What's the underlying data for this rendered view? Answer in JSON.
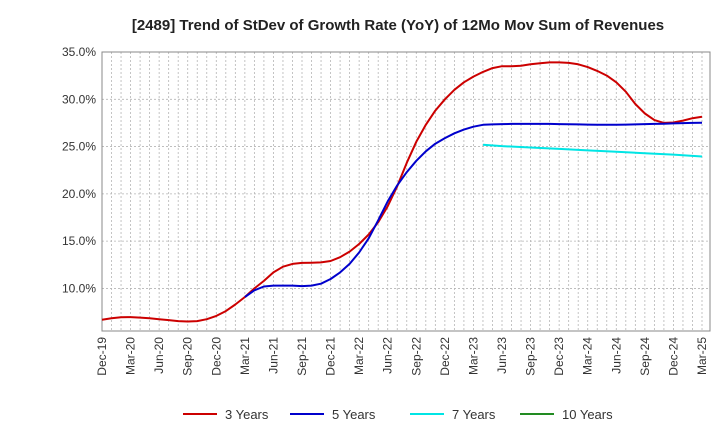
{
  "chart_data": {
    "type": "line",
    "title": "[2489]  Trend of StDev of Growth Rate (YoY) of 12Mo Mov Sum of Revenues",
    "xlabel": "",
    "ylabel": "",
    "x_tick_labels": [
      "Dec-19",
      "Mar-20",
      "Jun-20",
      "Sep-20",
      "Dec-20",
      "Mar-21",
      "Jun-21",
      "Sep-21",
      "Dec-21",
      "Mar-22",
      "Jun-22",
      "Sep-22",
      "Dec-22",
      "Mar-23",
      "Jun-23",
      "Sep-23",
      "Dec-23",
      "Mar-24",
      "Jun-24",
      "Sep-24",
      "Dec-24",
      "Mar-25"
    ],
    "y_tick_labels": [
      "10.0%",
      "15.0%",
      "20.0%",
      "25.0%",
      "30.0%",
      "35.0%"
    ],
    "y_ticks": [
      10,
      15,
      20,
      25,
      30,
      35
    ],
    "ylim": [
      5.5,
      35
    ],
    "x_range_months": [
      0,
      63
    ],
    "grid": true,
    "legend_position": "bottom",
    "series": [
      {
        "name": "3 Years",
        "color": "#cc0000",
        "points": [
          [
            0,
            6.7
          ],
          [
            1,
            6.85
          ],
          [
            2,
            6.95
          ],
          [
            3,
            6.97
          ],
          [
            4,
            6.92
          ],
          [
            5,
            6.85
          ],
          [
            6,
            6.75
          ],
          [
            7,
            6.65
          ],
          [
            8,
            6.55
          ],
          [
            9,
            6.5
          ],
          [
            10,
            6.55
          ],
          [
            11,
            6.75
          ],
          [
            12,
            7.1
          ],
          [
            13,
            7.6
          ],
          [
            14,
            8.3
          ],
          [
            15,
            9.1
          ],
          [
            16,
            10.0
          ],
          [
            17,
            10.8
          ],
          [
            18,
            11.7
          ],
          [
            19,
            12.3
          ],
          [
            20,
            12.6
          ],
          [
            21,
            12.7
          ],
          [
            22,
            12.72
          ],
          [
            23,
            12.75
          ],
          [
            24,
            12.9
          ],
          [
            25,
            13.3
          ],
          [
            26,
            13.9
          ],
          [
            27,
            14.7
          ],
          [
            28,
            15.7
          ],
          [
            29,
            17.0
          ],
          [
            30,
            18.7
          ],
          [
            31,
            20.8
          ],
          [
            32,
            23.3
          ],
          [
            33,
            25.5
          ],
          [
            34,
            27.3
          ],
          [
            35,
            28.8
          ],
          [
            36,
            30.0
          ],
          [
            37,
            31.0
          ],
          [
            38,
            31.8
          ],
          [
            39,
            32.4
          ],
          [
            40,
            32.9
          ],
          [
            41,
            33.3
          ],
          [
            42,
            33.5
          ],
          [
            43,
            33.5
          ],
          [
            44,
            33.55
          ],
          [
            45,
            33.7
          ],
          [
            46,
            33.8
          ],
          [
            47,
            33.9
          ],
          [
            48,
            33.9
          ],
          [
            49,
            33.85
          ],
          [
            50,
            33.7
          ],
          [
            51,
            33.4
          ],
          [
            52,
            33.0
          ],
          [
            53,
            32.5
          ],
          [
            54,
            31.8
          ],
          [
            55,
            30.8
          ],
          [
            56,
            29.5
          ],
          [
            57,
            28.5
          ],
          [
            58,
            27.8
          ],
          [
            59,
            27.5
          ],
          [
            60,
            27.55
          ],
          [
            61,
            27.75
          ],
          [
            62,
            28.0
          ],
          [
            63,
            28.15
          ]
        ]
      },
      {
        "name": "5 Years",
        "color": "#0000cc",
        "points": [
          [
            15,
            9.1
          ],
          [
            16,
            9.8
          ],
          [
            17,
            10.2
          ],
          [
            18,
            10.3
          ],
          [
            19,
            10.3
          ],
          [
            20,
            10.3
          ],
          [
            21,
            10.25
          ],
          [
            22,
            10.3
          ],
          [
            23,
            10.5
          ],
          [
            24,
            11.0
          ],
          [
            25,
            11.7
          ],
          [
            26,
            12.6
          ],
          [
            27,
            13.8
          ],
          [
            28,
            15.3
          ],
          [
            29,
            17.2
          ],
          [
            30,
            19.2
          ],
          [
            31,
            20.9
          ],
          [
            32,
            22.3
          ],
          [
            33,
            23.5
          ],
          [
            34,
            24.5
          ],
          [
            35,
            25.3
          ],
          [
            36,
            25.9
          ],
          [
            37,
            26.4
          ],
          [
            38,
            26.8
          ],
          [
            39,
            27.1
          ],
          [
            40,
            27.3
          ],
          [
            41,
            27.35
          ],
          [
            42,
            27.38
          ],
          [
            43,
            27.4
          ],
          [
            44,
            27.4
          ],
          [
            45,
            27.4
          ],
          [
            46,
            27.4
          ],
          [
            47,
            27.4
          ],
          [
            48,
            27.38
          ],
          [
            49,
            27.36
          ],
          [
            50,
            27.34
          ],
          [
            51,
            27.32
          ],
          [
            52,
            27.3
          ],
          [
            53,
            27.3
          ],
          [
            54,
            27.3
          ],
          [
            55,
            27.32
          ],
          [
            56,
            27.35
          ],
          [
            57,
            27.38
          ],
          [
            58,
            27.4
          ],
          [
            59,
            27.42
          ],
          [
            60,
            27.45
          ],
          [
            61,
            27.48
          ],
          [
            62,
            27.5
          ],
          [
            63,
            27.52
          ]
        ]
      },
      {
        "name": "7 Years",
        "color": "#00e5e5",
        "points": [
          [
            40,
            25.2
          ],
          [
            42,
            25.05
          ],
          [
            45,
            24.9
          ],
          [
            48,
            24.75
          ],
          [
            51,
            24.6
          ],
          [
            54,
            24.45
          ],
          [
            57,
            24.3
          ],
          [
            60,
            24.15
          ],
          [
            63,
            23.95
          ]
        ]
      },
      {
        "name": "10 Years",
        "color": "#228b22",
        "points": []
      }
    ]
  }
}
